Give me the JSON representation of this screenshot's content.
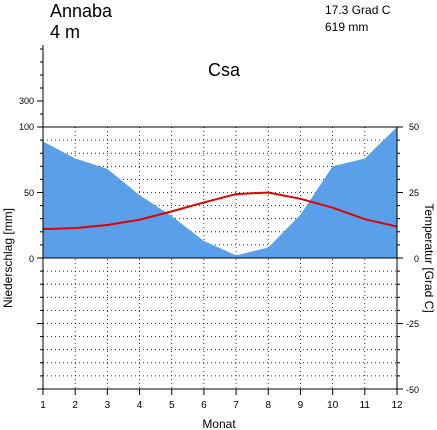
{
  "chart_data": {
    "type": "area",
    "station": "Annaba",
    "elevation": "4 m",
    "annual_temperature": "17.3 Grad C",
    "annual_precipitation": "619 mm",
    "climate_class": "Csa",
    "xlabel": "Monat",
    "ylabel_left": "Niederschlag [mm]",
    "ylabel_right": "Temperatur [Grad C]",
    "x": [
      1,
      2,
      3,
      4,
      5,
      6,
      7,
      8,
      9,
      10,
      11,
      12
    ],
    "x_tick_labels": [
      "1",
      "2",
      "3",
      "4",
      "5",
      "6",
      "7",
      "8",
      "9",
      "10",
      "11",
      "12"
    ],
    "left_tick_labels": [
      "300",
      "100",
      "50",
      "0"
    ],
    "right_tick_labels": [
      "50",
      "25",
      "0",
      "-25",
      "-50"
    ],
    "precip_axis_range": [
      0,
      100
    ],
    "temp_axis_range": [
      -50,
      50
    ],
    "grid": true,
    "series": [
      {
        "key": "precipitation",
        "axis": "left",
        "color": "#5aa0e8",
        "values": [
          89,
          76,
          68,
          48,
          32,
          13,
          2,
          8,
          33,
          70,
          76,
          100
        ]
      },
      {
        "key": "temperature",
        "axis": "right",
        "color": "#dd0000",
        "values": [
          11,
          11.4,
          12.6,
          14.6,
          17.8,
          21.2,
          24.4,
          25,
          22.6,
          19.2,
          14.8,
          12
        ]
      }
    ]
  }
}
